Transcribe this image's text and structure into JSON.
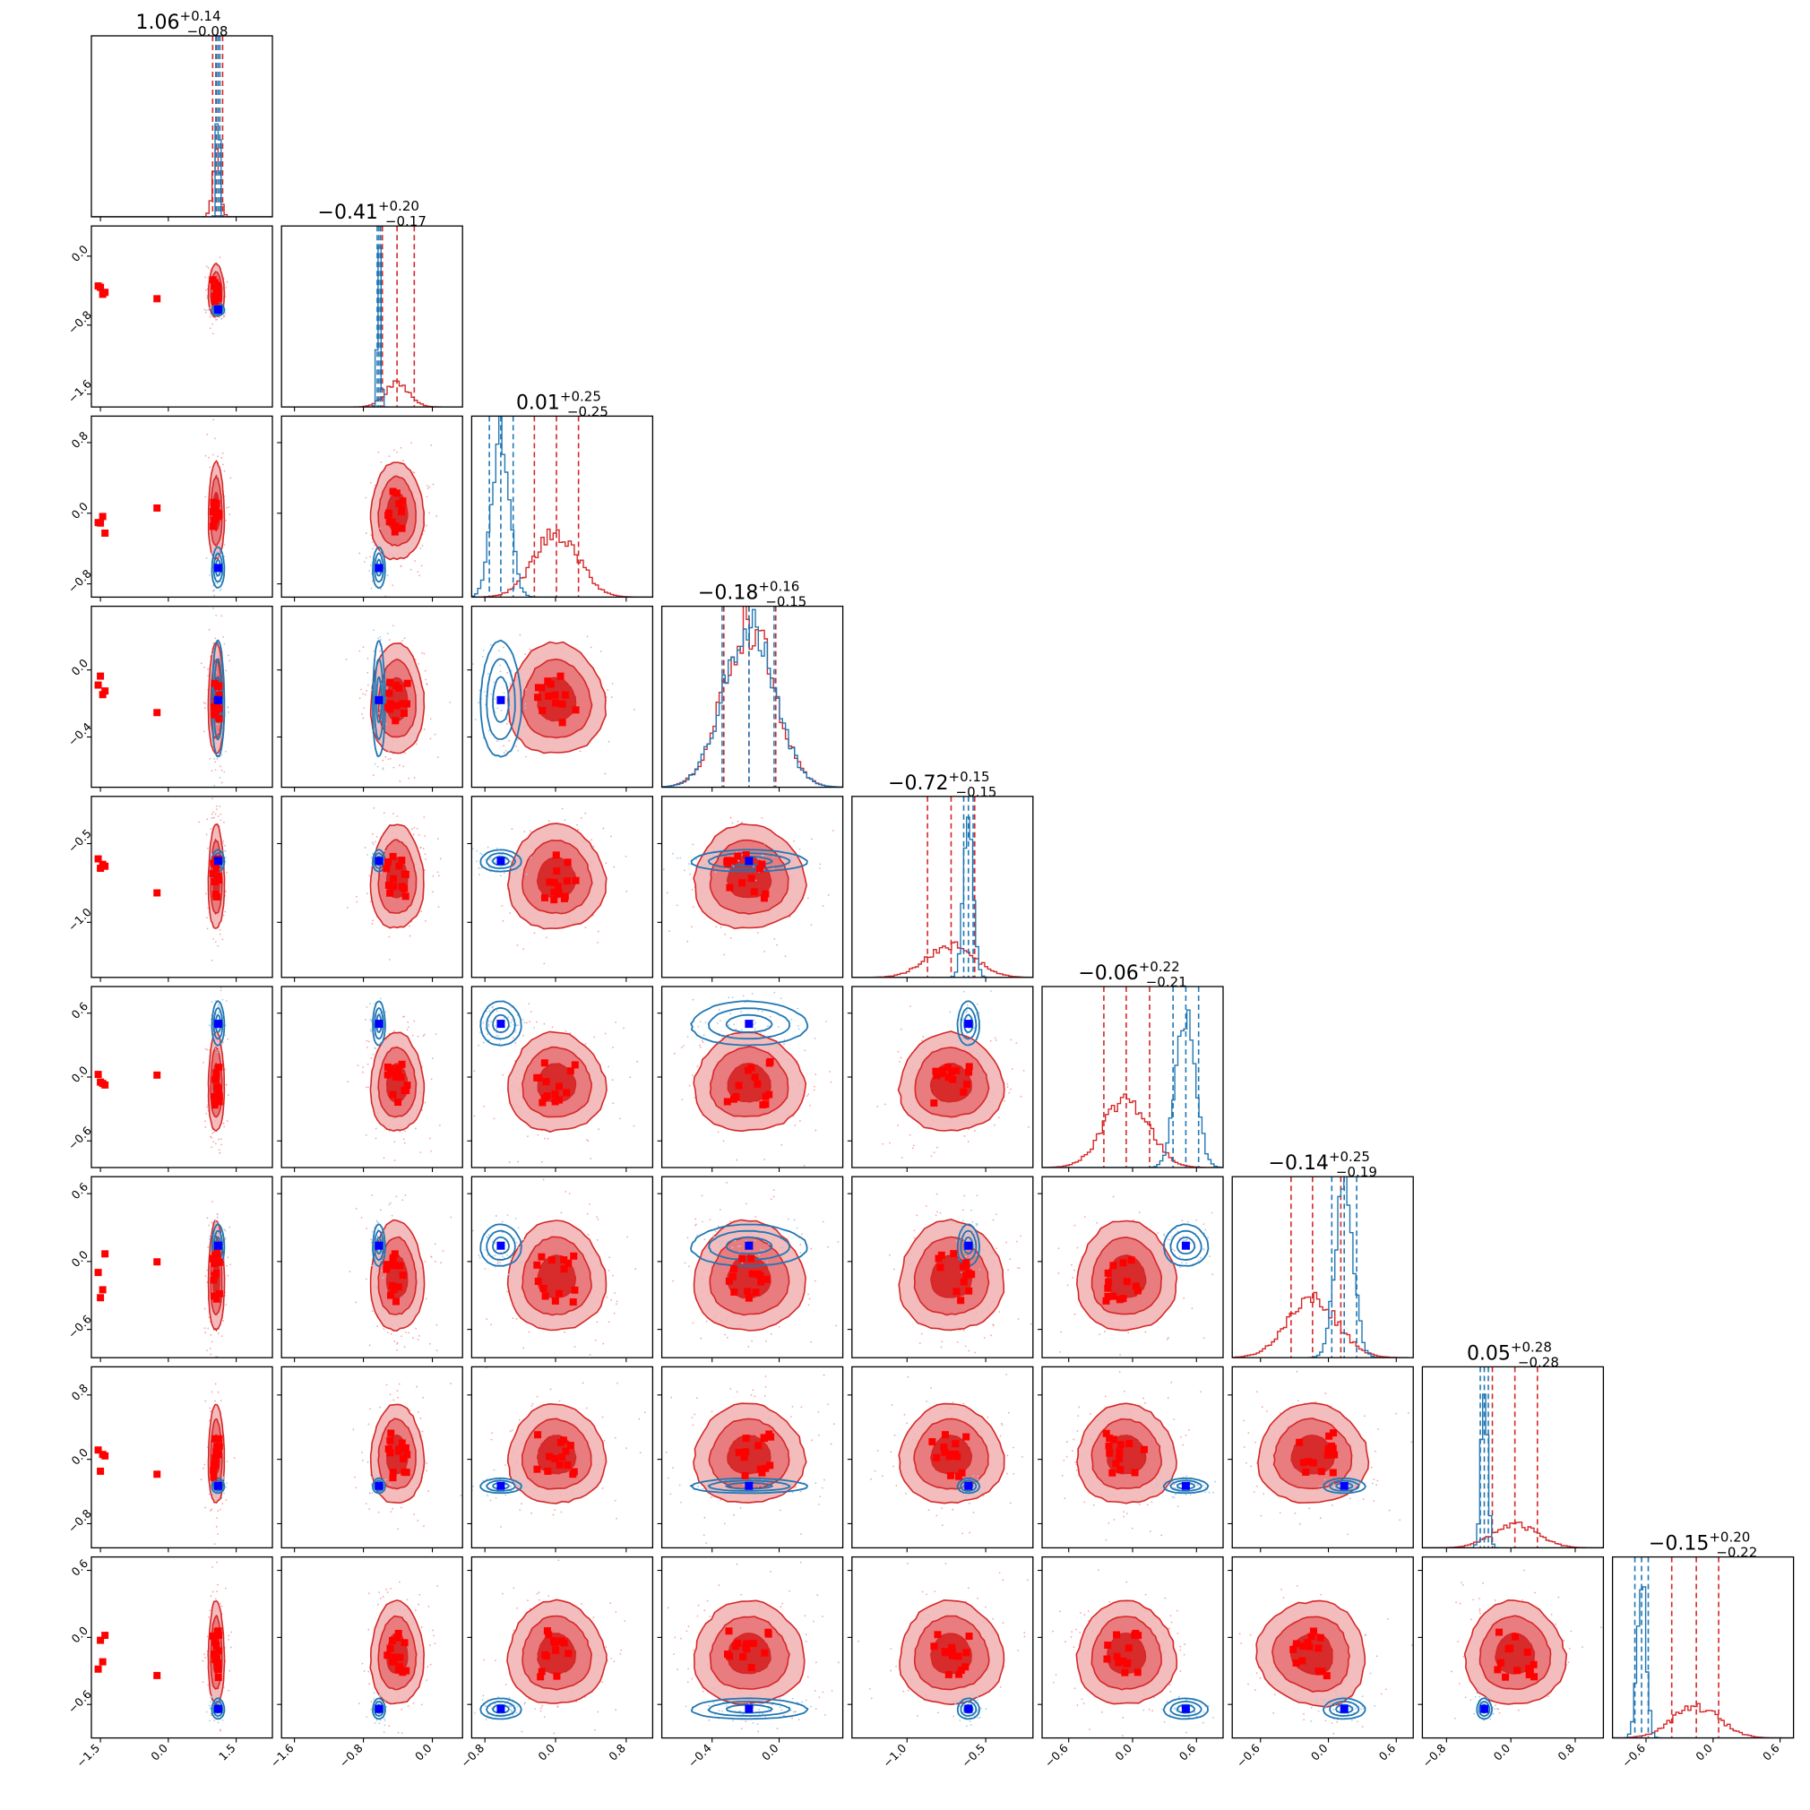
{
  "chart_data": {
    "type": "corner",
    "n_params": 9,
    "colors": {
      "posterior_a": "#d62728",
      "posterior_b": "#1f77b4",
      "marker_a": "#ff0000",
      "marker_b": "#0000ff"
    },
    "params": [
      {
        "range": [
          -1.7,
          2.3
        ],
        "ticks": [
          {
            "v": -1.5,
            "label": "−1.5"
          },
          {
            "v": 0.0,
            "label": "0.0"
          },
          {
            "v": 1.5,
            "label": "1.5"
          }
        ],
        "red": {
          "median": 1.06,
          "lo": 0.98,
          "hi": 1.2,
          "sigma": 0.08
        },
        "blue": {
          "median": 1.1,
          "lo": 1.05,
          "hi": 1.14,
          "sigma": 0.03
        },
        "truth": 1.1,
        "title": {
          "median": "1.06",
          "plus": "+0.14",
          "minus": "−0.08"
        }
      },
      {
        "range": [
          -1.75,
          0.35
        ],
        "ticks": [
          {
            "v": -1.6,
            "label": "−1.6"
          },
          {
            "v": -0.8,
            "label": "−0.8"
          },
          {
            "v": 0.0,
            "label": "0.0"
          }
        ],
        "red": {
          "median": -0.41,
          "lo": -0.58,
          "hi": -0.21,
          "sigma": 0.14
        },
        "blue": {
          "median": -0.62,
          "lo": -0.64,
          "hi": -0.6,
          "sigma": 0.02
        },
        "truth": -0.62,
        "title": {
          "median": "−0.41",
          "plus": "+0.20",
          "minus": "−0.17"
        }
      },
      {
        "range": [
          -0.95,
          1.1
        ],
        "ticks": [
          {
            "v": -0.8,
            "label": "−0.8"
          },
          {
            "v": 0.0,
            "label": "0.0"
          },
          {
            "v": 0.8,
            "label": "0.8"
          }
        ],
        "red": {
          "median": 0.01,
          "lo": -0.24,
          "hi": 0.26,
          "sigma": 0.25
        },
        "blue": {
          "median": -0.62,
          "lo": -0.75,
          "hi": -0.48,
          "sigma": 0.1
        },
        "truth": -0.62,
        "title": {
          "median": "0.01",
          "plus": "+0.25",
          "minus": "−0.25"
        }
      },
      {
        "range": [
          -0.7,
          0.38
        ],
        "ticks": [
          {
            "v": -0.4,
            "label": "−0.4"
          },
          {
            "v": 0.0,
            "label": "0.0"
          }
        ],
        "red": {
          "median": -0.18,
          "lo": -0.33,
          "hi": -0.02,
          "sigma": 0.15
        },
        "blue": {
          "median": -0.18,
          "lo": -0.34,
          "hi": -0.03,
          "sigma": 0.15
        },
        "truth": -0.18,
        "title": {
          "median": "−0.18",
          "plus": "+0.16",
          "minus": "−0.15"
        }
      },
      {
        "range": [
          -1.35,
          -0.2
        ],
        "ticks": [
          {
            "v": -1.0,
            "label": "−1.0"
          },
          {
            "v": -0.5,
            "label": "−0.5"
          }
        ],
        "red": {
          "median": -0.72,
          "lo": -0.87,
          "hi": -0.57,
          "sigma": 0.15
        },
        "blue": {
          "median": -0.61,
          "lo": -0.64,
          "hi": -0.58,
          "sigma": 0.03
        },
        "truth": -0.61,
        "title": {
          "median": "−0.72",
          "plus": "+0.15",
          "minus": "−0.15"
        }
      },
      {
        "range": [
          -0.85,
          0.85
        ],
        "ticks": [
          {
            "v": -0.6,
            "label": "−0.6"
          },
          {
            "v": 0.0,
            "label": "0.0"
          },
          {
            "v": 0.6,
            "label": "0.6"
          }
        ],
        "red": {
          "median": -0.06,
          "lo": -0.27,
          "hi": 0.16,
          "sigma": 0.21
        },
        "blue": {
          "median": 0.5,
          "lo": 0.38,
          "hi": 0.62,
          "sigma": 0.09
        },
        "truth": 0.5,
        "title": {
          "median": "−0.06",
          "plus": "+0.22",
          "minus": "−0.21"
        }
      },
      {
        "range": [
          -0.85,
          0.75
        ],
        "ticks": [
          {
            "v": -0.6,
            "label": "−0.6"
          },
          {
            "v": 0.0,
            "label": "0.0"
          },
          {
            "v": 0.6,
            "label": "0.6"
          }
        ],
        "red": {
          "median": -0.14,
          "lo": -0.33,
          "hi": 0.11,
          "sigma": 0.22
        },
        "blue": {
          "median": 0.14,
          "lo": 0.03,
          "hi": 0.25,
          "sigma": 0.08
        },
        "truth": 0.14,
        "title": {
          "median": "−0.14",
          "plus": "+0.25",
          "minus": "−0.19"
        }
      },
      {
        "range": [
          -1.1,
          1.15
        ],
        "ticks": [
          {
            "v": -0.8,
            "label": "−0.8"
          },
          {
            "v": 0.0,
            "label": "0.0"
          },
          {
            "v": 0.8,
            "label": "0.8"
          }
        ],
        "red": {
          "median": 0.05,
          "lo": -0.23,
          "hi": 0.33,
          "sigma": 0.28
        },
        "blue": {
          "median": -0.33,
          "lo": -0.38,
          "hi": -0.28,
          "sigma": 0.04
        },
        "truth": -0.33,
        "title": {
          "median": "0.05",
          "plus": "+0.28",
          "minus": "−0.28"
        }
      },
      {
        "range": [
          -0.9,
          0.72
        ],
        "ticks": [
          {
            "v": -0.6,
            "label": "−0.6"
          },
          {
            "v": 0.0,
            "label": "0.0"
          },
          {
            "v": 0.6,
            "label": "0.6"
          }
        ],
        "red": {
          "median": -0.15,
          "lo": -0.37,
          "hi": 0.05,
          "sigma": 0.21
        },
        "blue": {
          "median": -0.64,
          "lo": -0.7,
          "hi": -0.58,
          "sigma": 0.04
        },
        "truth": -0.64,
        "title": {
          "median": "−0.15",
          "plus": "+0.20",
          "minus": "−0.22"
        }
      }
    ]
  }
}
